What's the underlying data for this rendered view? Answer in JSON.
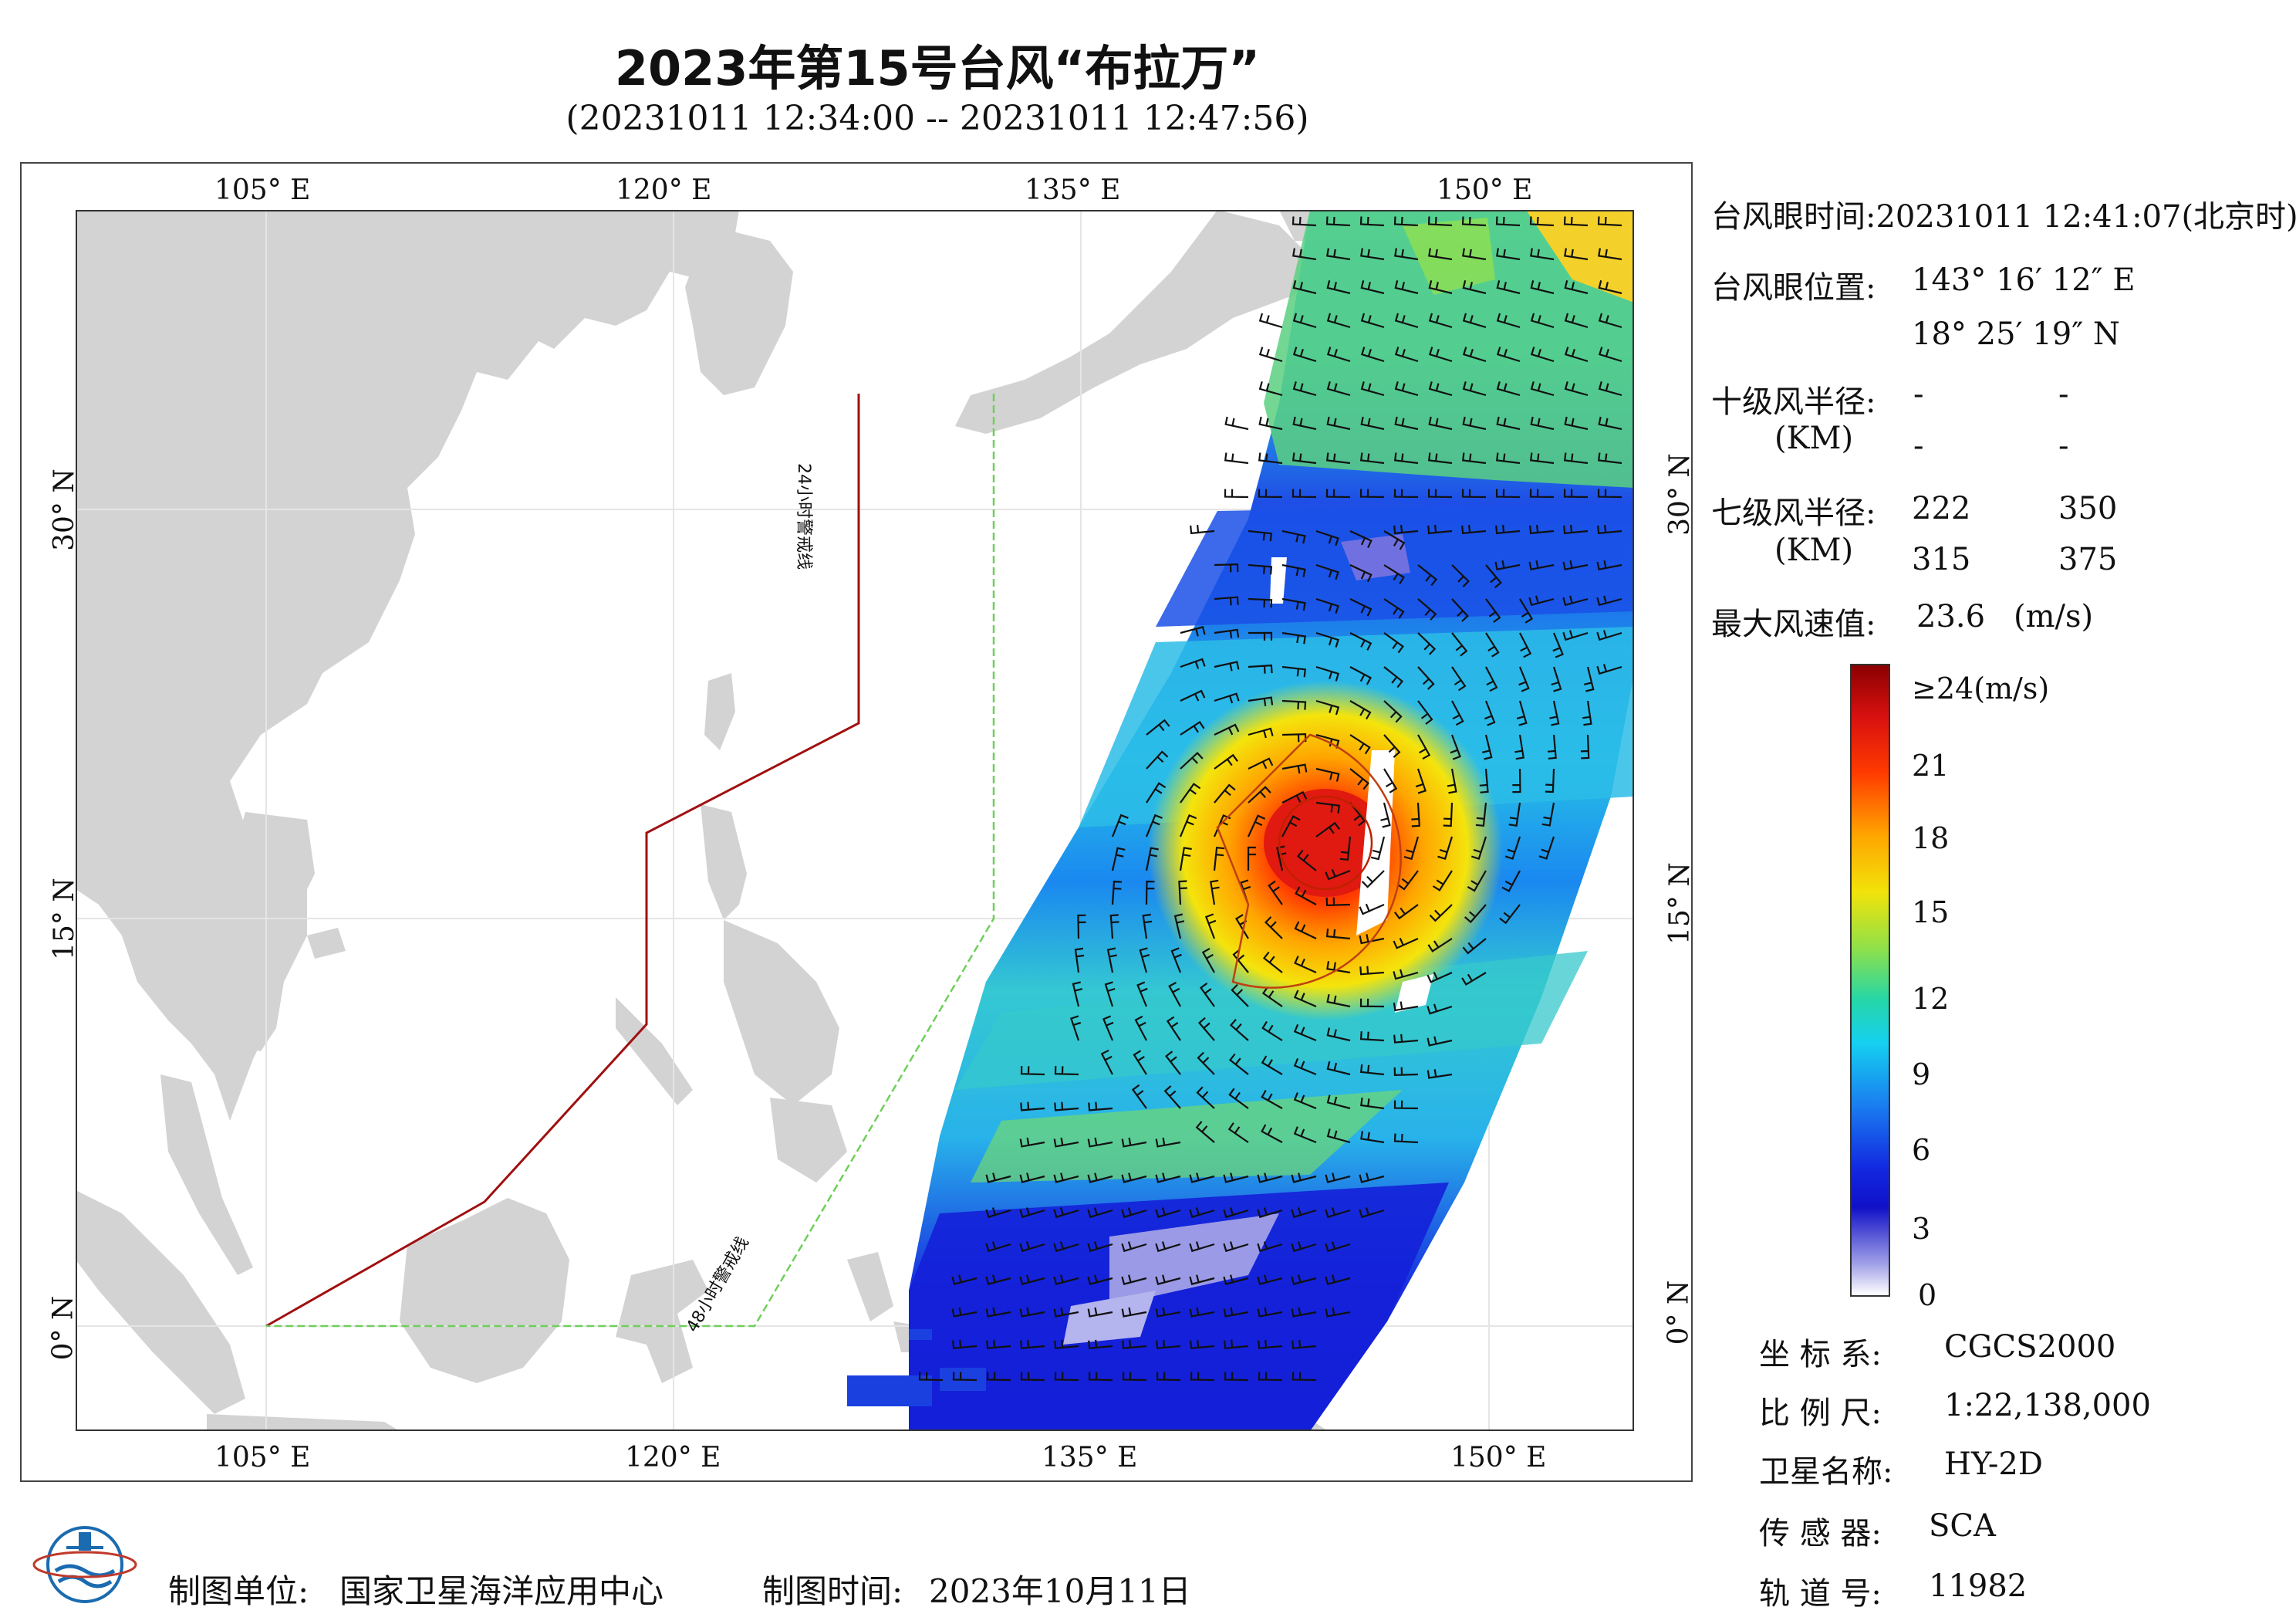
{
  "title": "2023年第15号台风“布拉万”",
  "subtitle": "(20231011 12:34:00 -- 20231011 12:47:56)",
  "axes": {
    "lon_top": [
      "105° E",
      "120° E",
      "135° E",
      "150° E"
    ],
    "lon_bottom": [
      "105° E",
      "120° E",
      "135° E",
      "150° E"
    ],
    "lat_left": [
      "30° N",
      "15° N",
      "0° N"
    ],
    "lat_right": [
      "30° N",
      "15° N",
      "0° N"
    ]
  },
  "warning_lines": {
    "line24": "24小时警戒线",
    "line48": "48小时警戒线",
    "line24_color": "#a01010",
    "line48_color": "#6fcf5a"
  },
  "typhoon_info": {
    "eye_time_label": "台风眼时间:",
    "eye_time_value": "20231011 12:41:07(北京时)",
    "eye_pos_label": "台风眼位置:",
    "eye_lon": "143° 16′ 12″ E",
    "eye_lat": "18° 25′ 19″ N",
    "r10_label": "十级风半径:",
    "r10_unit": "(KM)",
    "r10_values": [
      "-",
      "-",
      "-",
      "-"
    ],
    "r7_label": "七级风半径:",
    "r7_unit": "(KM)",
    "r7_values": [
      "222",
      "350",
      "315",
      "375"
    ],
    "max_wind_label": "最大风速值:",
    "max_wind_value": "23.6",
    "max_wind_unit": "(m/s)"
  },
  "legend": {
    "labels": [
      "≥24(m/s)",
      "21",
      "18",
      "15",
      "12",
      "9",
      "6",
      "3",
      "0"
    ]
  },
  "meta": {
    "coord_label": "坐 标 系:",
    "coord_value": "CGCS2000",
    "scale_label": "比 例 尺:",
    "scale_value": "1:22,138,000",
    "satellite_label": "卫星名称:",
    "satellite_value": "HY-2D",
    "sensor_label": "传 感 器:",
    "sensor_value": "SCA",
    "orbit_label": "轨 道 号:",
    "orbit_value": "11982"
  },
  "footer": {
    "maker_label": "制图单位:",
    "maker_value": "国家卫星海洋应用中心",
    "time_label": "制图时间:",
    "time_value": "2023年10月11日"
  }
}
